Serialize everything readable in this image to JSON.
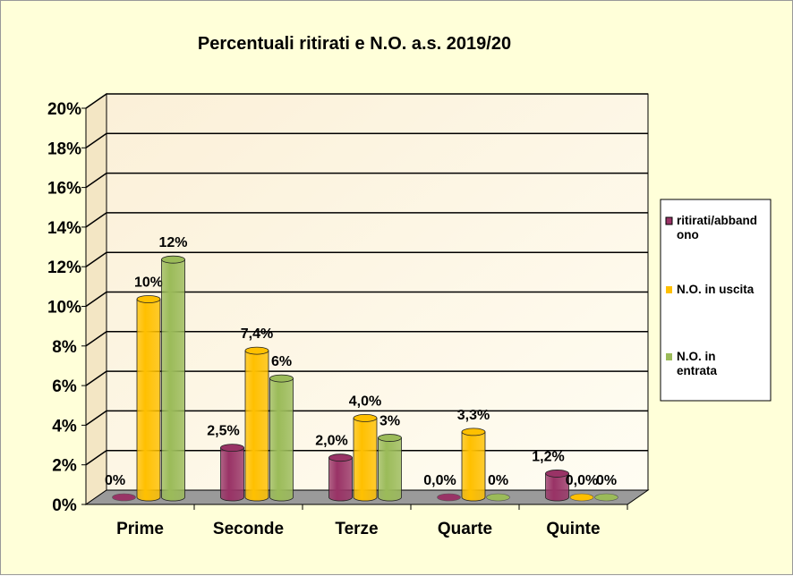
{
  "chart_data": {
    "type": "bar",
    "title": "Percentuali  ritirati e N.O. a.s. 2019/20",
    "categories": [
      "Prime",
      "Seconde",
      "Terze",
      "Quarte",
      "Quinte"
    ],
    "series": [
      {
        "name": "ritirati/abbandono",
        "legend_lines": [
          "ritirati/abband",
          "ono"
        ],
        "color": "#993366",
        "values": [
          0,
          2.5,
          2.0,
          0.0,
          1.2
        ],
        "labels": [
          "0%",
          "2,5%",
          "2,0%",
          "0,0%",
          "1,2%"
        ]
      },
      {
        "name": "N.O. in uscita",
        "legend_lines": [
          "N.O. in uscita"
        ],
        "color": "#ffc000",
        "values": [
          10,
          7.4,
          4.0,
          3.3,
          0.0
        ],
        "labels": [
          "10%",
          "7,4%",
          "4,0%",
          "3,3%",
          "0,0%"
        ]
      },
      {
        "name": "N.O. in entrata",
        "legend_lines": [
          "N.O. in",
          "entrata"
        ],
        "color": "#9bbb59",
        "values": [
          12,
          6,
          3,
          0,
          0
        ],
        "labels": [
          "12%",
          "6%",
          "3%",
          "0%",
          "0%"
        ]
      }
    ],
    "yticks": [
      "0%",
      "2%",
      "4%",
      "6%",
      "8%",
      "10%",
      "12%",
      "14%",
      "16%",
      "18%",
      "20%"
    ],
    "ylim": [
      0,
      20
    ],
    "grid": true,
    "legend": "right"
  }
}
